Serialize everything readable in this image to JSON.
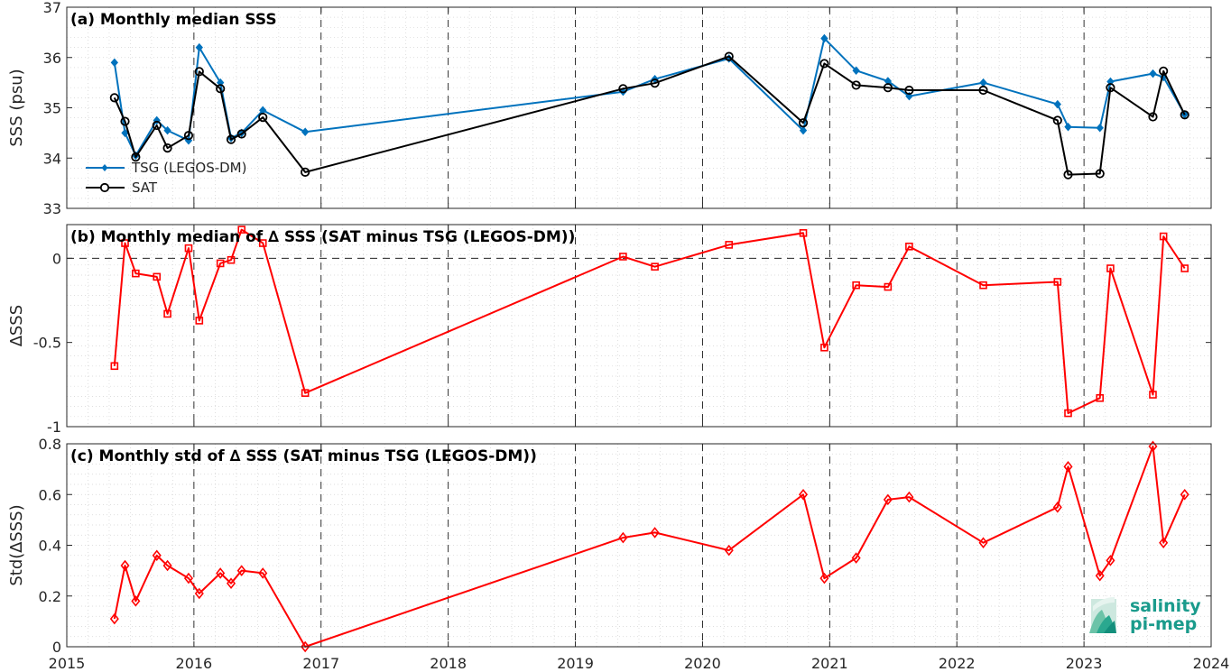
{
  "chart_data": [
    {
      "type": "line",
      "title": "(a) Monthly median SSS",
      "ylabel": "SSS (psu)",
      "xlim": [
        2015,
        2024
      ],
      "ylim": [
        33,
        37
      ],
      "yticks": [
        33,
        34,
        35,
        36,
        37
      ],
      "grid": "minor dotted, major dashed at years",
      "legend_placement": "lower-left",
      "series": [
        {
          "name": "TSG (LEGOS-DM)",
          "color": "#0072BD",
          "marker": "diamond-filled",
          "x": [
            2015.375,
            2015.458,
            2015.542,
            2015.708,
            2015.792,
            2015.958,
            2016.042,
            2016.208,
            2016.292,
            2016.375,
            2016.542,
            2016.875,
            2019.375,
            2019.625,
            2020.208,
            2020.792,
            2020.958,
            2021.208,
            2021.458,
            2021.625,
            2022.208,
            2022.792,
            2022.875,
            2023.125,
            2023.208,
            2023.542,
            2023.625,
            2023.792
          ],
          "y": [
            35.9,
            34.5,
            34.05,
            34.75,
            34.55,
            34.35,
            36.2,
            35.5,
            34.4,
            34.5,
            34.95,
            34.52,
            35.32,
            35.57,
            35.98,
            34.55,
            36.38,
            35.74,
            35.53,
            35.23,
            35.5,
            35.07,
            34.62,
            34.6,
            35.52,
            35.68,
            35.61,
            34.87
          ]
        },
        {
          "name": "SAT",
          "color": "#000000",
          "marker": "circle-open",
          "x": [
            2015.375,
            2015.458,
            2015.542,
            2015.708,
            2015.792,
            2015.958,
            2016.042,
            2016.208,
            2016.292,
            2016.375,
            2016.542,
            2016.875,
            2019.375,
            2019.625,
            2020.208,
            2020.792,
            2020.958,
            2021.208,
            2021.458,
            2021.625,
            2022.208,
            2022.792,
            2022.875,
            2023.125,
            2023.208,
            2023.542,
            2023.625,
            2023.792
          ],
          "y": [
            35.2,
            34.73,
            34.02,
            34.65,
            34.2,
            34.45,
            35.72,
            35.38,
            34.37,
            34.48,
            34.81,
            33.72,
            35.38,
            35.49,
            36.02,
            34.7,
            35.88,
            35.45,
            35.4,
            35.35,
            35.35,
            34.75,
            33.67,
            33.69,
            35.4,
            34.82,
            35.73,
            34.86
          ]
        }
      ]
    },
    {
      "type": "line",
      "title": "(b) Monthly median of ∆ SSS (SAT minus TSG (LEGOS-DM))",
      "ylabel": "∆SSS",
      "xlim": [
        2015,
        2024
      ],
      "ylim": [
        -1,
        0.2
      ],
      "yticks": [
        -1,
        -0.5,
        0
      ],
      "ytick_labels": [
        "-1",
        "-0.5",
        "0"
      ],
      "reference_line": 0,
      "series": [
        {
          "color": "#FF0000",
          "marker": "square-open",
          "x": [
            2015.375,
            2015.458,
            2015.542,
            2015.708,
            2015.792,
            2015.958,
            2016.042,
            2016.208,
            2016.292,
            2016.375,
            2016.542,
            2016.875,
            2019.375,
            2019.625,
            2020.208,
            2020.792,
            2020.958,
            2021.208,
            2021.458,
            2021.625,
            2022.208,
            2022.792,
            2022.875,
            2023.125,
            2023.208,
            2023.542,
            2023.625,
            2023.792
          ],
          "y": [
            -0.64,
            0.09,
            -0.09,
            -0.11,
            -0.33,
            0.06,
            -0.37,
            -0.03,
            -0.01,
            0.17,
            0.09,
            -0.8,
            0.01,
            -0.05,
            0.08,
            0.15,
            -0.53,
            -0.16,
            -0.17,
            0.07,
            -0.16,
            -0.14,
            -0.92,
            -0.83,
            -0.06,
            -0.81,
            0.13,
            -0.06
          ]
        }
      ]
    },
    {
      "type": "line",
      "title": "(c) Monthly std of ∆ SSS (SAT minus TSG (LEGOS-DM))",
      "ylabel": "Std(∆SSS)",
      "xlim": [
        2015,
        2024
      ],
      "ylim": [
        0,
        0.8
      ],
      "yticks": [
        0,
        0.2,
        0.4,
        0.6,
        0.8
      ],
      "ytick_labels": [
        "0",
        "0.2",
        "0.4",
        "0.6",
        "0.8"
      ],
      "xticks": [
        2015,
        2016,
        2017,
        2018,
        2019,
        2020,
        2021,
        2022,
        2023,
        2024
      ],
      "series": [
        {
          "color": "#FF0000",
          "marker": "diamond-open",
          "x": [
            2015.375,
            2015.458,
            2015.542,
            2015.708,
            2015.792,
            2015.958,
            2016.042,
            2016.208,
            2016.292,
            2016.375,
            2016.542,
            2016.875,
            2019.375,
            2019.625,
            2020.208,
            2020.792,
            2020.958,
            2021.208,
            2021.458,
            2021.625,
            2022.208,
            2022.792,
            2022.875,
            2023.125,
            2023.208,
            2023.542,
            2023.625,
            2023.792
          ],
          "y": [
            0.11,
            0.32,
            0.18,
            0.36,
            0.32,
            0.27,
            0.21,
            0.29,
            0.25,
            0.3,
            0.29,
            0.0,
            0.43,
            0.45,
            0.38,
            0.6,
            0.27,
            0.35,
            0.58,
            0.59,
            0.41,
            0.55,
            0.71,
            0.28,
            0.34,
            0.79,
            0.41,
            0.6
          ]
        }
      ]
    }
  ],
  "logo": {
    "line1": "salinity",
    "line2": "pi-mep",
    "color": "#1a9b8c"
  }
}
